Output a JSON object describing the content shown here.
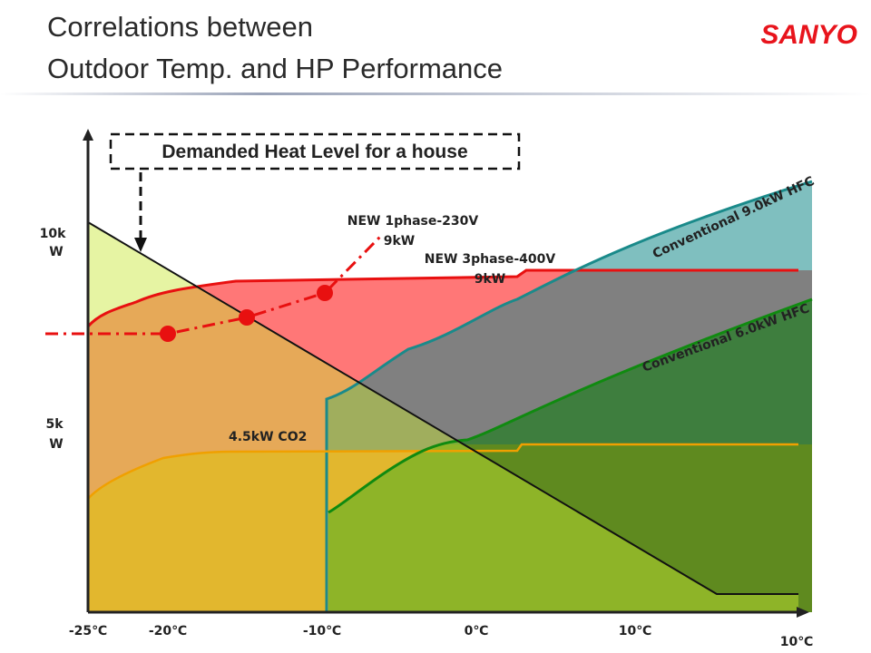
{
  "header": {
    "title_lines": [
      "Correlations between",
      "Outdoor Temp. and HP Performance"
    ],
    "logo": "SANYO"
  },
  "diagram": {
    "demand_label": "Demanded Heat Level for a house",
    "new_1phase": [
      "NEW 1phase-230V",
      "9kW"
    ],
    "new_3phase": [
      "NEW 3phase-400V",
      "9kW"
    ],
    "conv_9": "Conventional 9.0kW HFC",
    "conv_6": "Conventional 6.0kW HFC",
    "co2": "4.5kW CO2",
    "y_labels": [
      [
        "10k",
        "W"
      ],
      [
        "5k",
        "W"
      ]
    ],
    "x_labels": [
      "-25℃",
      "-20℃",
      "-10℃",
      "0℃",
      "10℃"
    ],
    "x_end_label": "10℃"
  }
}
